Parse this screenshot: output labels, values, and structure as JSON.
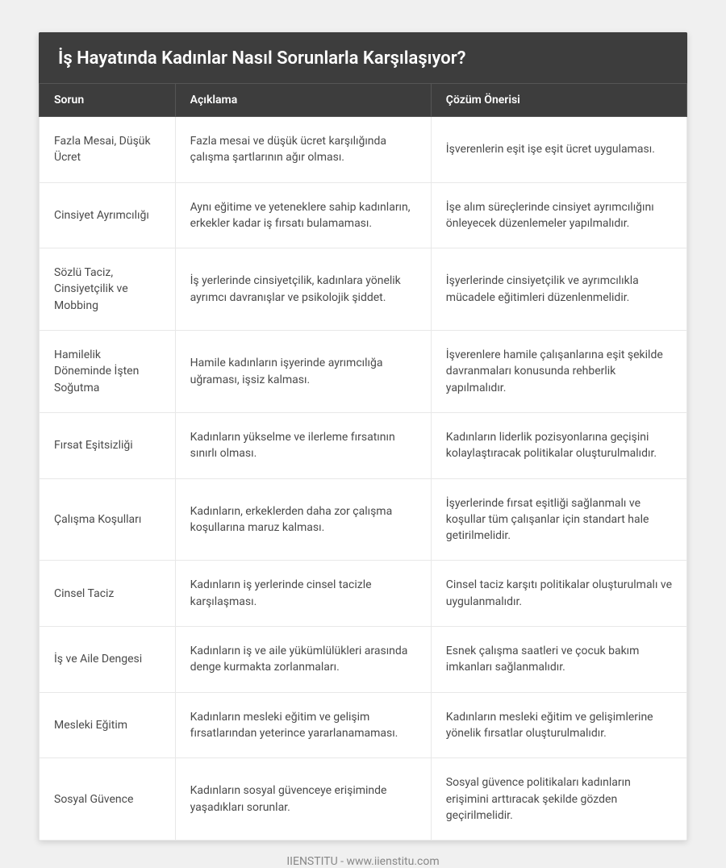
{
  "title": "İş Hayatında Kadınlar Nasıl Sorunlarla Karşılaşıyor?",
  "columns": [
    "Sorun",
    "Açıklama",
    "Çözüm Önerisi"
  ],
  "rows": [
    {
      "problem": "Fazla Mesai, Düşük Ücret",
      "description": "Fazla mesai ve düşük ücret karşılığında çalışma şartlarının ağır olması.",
      "solution": "İşverenlerin eşit işe eşit ücret uygulaması."
    },
    {
      "problem": "Cinsiyet Ayrımcılığı",
      "description": "Aynı eğitime ve yeteneklere sahip kadınların, erkekler kadar iş fırsatı bulamaması.",
      "solution": "İşe alım süreçlerinde cinsiyet ayrımcılığını önleyecek düzenlemeler yapılmalıdır."
    },
    {
      "problem": "Sözlü Taciz, Cinsiyetçilik ve Mobbing",
      "description": "İş yerlerinde cinsiyetçilik, kadınlara yönelik ayrımcı davranışlar ve psikolojik şiddet.",
      "solution": "İşyerlerinde cinsiyetçilik ve ayrımcılıkla mücadele eğitimleri düzenlenmelidir."
    },
    {
      "problem": "Hamilelik Döneminde İşten Soğutma",
      "description": "Hamile kadınların işyerinde ayrımcılığa uğraması, işsiz kalması.",
      "solution": "İşverenlere hamile çalışanlarına eşit şekilde davranmaları konusunda rehberlik yapılmalıdır."
    },
    {
      "problem": "Fırsat Eşitsizliği",
      "description": "Kadınların yükselme ve ilerleme fırsatının sınırlı olması.",
      "solution": "Kadınların liderlik pozisyonlarına geçişini kolaylaştıracak politikalar oluşturulmalıdır."
    },
    {
      "problem": "Çalışma Koşulları",
      "description": "Kadınların, erkeklerden daha zor çalışma koşullarına maruz kalması.",
      "solution": "İşyerlerinde fırsat eşitliği sağlanmalı ve koşullar tüm çalışanlar için standart hale getirilmelidir."
    },
    {
      "problem": "Cinsel Taciz",
      "description": "Kadınların iş yerlerinde cinsel tacizle karşılaşması.",
      "solution": "Cinsel taciz karşıtı politikalar oluşturulmalı ve uygulanmalıdır."
    },
    {
      "problem": "İş ve Aile Dengesi",
      "description": "Kadınların iş ve aile yükümlülükleri arasında denge kurmakta zorlanmaları.",
      "solution": "Esnek çalışma saatleri ve çocuk bakım imkanları sağlanmalıdır."
    },
    {
      "problem": "Mesleki Eğitim",
      "description": "Kadınların mesleki eğitim ve gelişim fırsatlarından yeterince yararlanamaması.",
      "solution": "Kadınların mesleki eğitim ve gelişimlerine yönelik fırsatlar oluşturulmalıdır."
    },
    {
      "problem": "Sosyal Güvence",
      "description": "Kadınların sosyal güvenceye erişiminde yaşadıkları sorunlar.",
      "solution": "Sosyal güvence politikaları kadınların erişimini arttıracak şekilde gözden geçirilmelidir."
    }
  ],
  "footer": "IIENSTITU - www.iienstitu.com",
  "colors": {
    "page_bg": "#f0f0f0",
    "header_bg": "#3d3d3d",
    "header_text": "#ffffff",
    "cell_border": "#e8e8e8",
    "cell_text": "#4a4a4a",
    "footer_text": "#888888"
  }
}
